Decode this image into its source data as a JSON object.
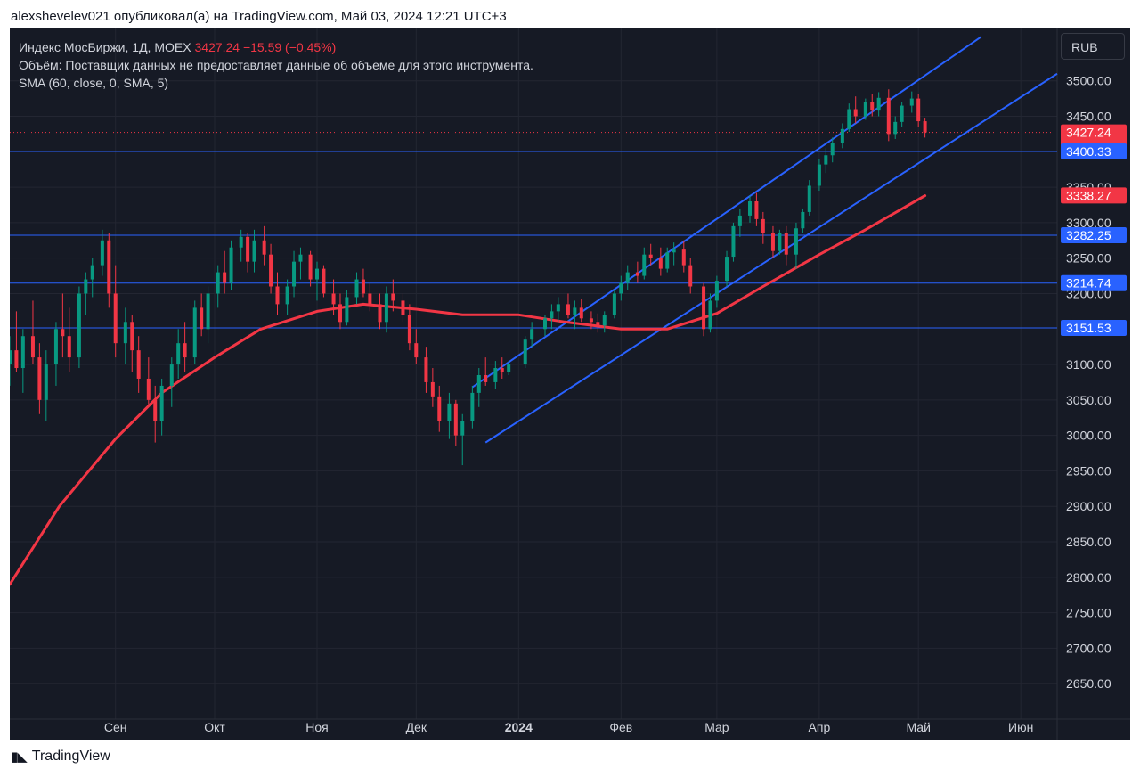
{
  "credit": "alexshevelev021 опубликовал(а) на TradingView.com, Май 03, 2024 12:21 UTC+3",
  "logo": {
    "text": "TradingView",
    "icon": "tradingview-logo-icon"
  },
  "legend": {
    "symbol": "Индекс МосБиржи, 1Д, MOEX",
    "price": "3427.24",
    "change": "−15.59 (−0.45%)",
    "volume_note": "Объём: Поставщик данных не предоставляет данные об объеме для этого инструмента.",
    "sma": "SMA (60, close, 0, SMA, 5)"
  },
  "currency_button": "RUB",
  "colors": {
    "bg": "#161a25",
    "up": "#089981",
    "down": "#f23645",
    "sma": "#f23645",
    "level": "#2962ff",
    "text": "#d1d4dc"
  },
  "chart_data": {
    "type": "candlestick",
    "ylim": [
      2600,
      3575
    ],
    "y_ticks": [
      "3500.00",
      "3450.00",
      "3350.00",
      "3300.00",
      "3250.00",
      "3200.00",
      "3100.00",
      "3050.00",
      "3000.00",
      "2950.00",
      "2900.00",
      "2850.00",
      "2800.00",
      "2750.00",
      "2700.00",
      "2650.00"
    ],
    "x_ticks": [
      "Сен",
      "Окт",
      "Ноя",
      "Дек",
      "2024",
      "Фев",
      "Мар",
      "Апр",
      "Май",
      "Июн"
    ],
    "x_tick_dates": [
      "2023-09-01",
      "2023-10-01",
      "2023-11-01",
      "2023-12-01",
      "2024-01-01",
      "2024-02-01",
      "2024-03-01",
      "2024-04-01",
      "2024-05-01",
      "2024-06-01"
    ],
    "xlim": [
      "2023-07-31",
      "2024-06-12"
    ],
    "grid": true,
    "price_labels": [
      {
        "value": 3427.24,
        "text": "3427.24",
        "sub": "06:38:29",
        "color": "#f23645"
      },
      {
        "value": 3400.33,
        "text": "3400.33",
        "color": "#2962ff"
      },
      {
        "value": 3338.27,
        "text": "3338.27",
        "color": "#f23645"
      },
      {
        "value": 3282.25,
        "text": "3282.25",
        "color": "#2962ff"
      },
      {
        "value": 3214.74,
        "text": "3214.74",
        "color": "#2962ff"
      },
      {
        "value": 3151.53,
        "text": "3151.53",
        "color": "#2962ff"
      }
    ],
    "horizontal_levels": [
      3400.33,
      3282.25,
      3214.74,
      3151.53
    ],
    "last_price": 3427.24,
    "channel_lines": [
      {
        "from": {
          "date": "2023-12-18",
          "y": 3068
        },
        "to": {
          "date": "2024-05-20",
          "y": 3562
        }
      },
      {
        "from": {
          "date": "2023-12-22",
          "y": 2990
        },
        "to": {
          "date": "2024-06-12",
          "y": 3510
        }
      }
    ],
    "sma_series": {
      "dates": [
        "2023-07-31",
        "2023-08-15",
        "2023-09-01",
        "2023-09-15",
        "2023-10-01",
        "2023-10-15",
        "2023-11-01",
        "2023-11-15",
        "2023-12-01",
        "2023-12-15",
        "2024-01-01",
        "2024-01-15",
        "2024-02-01",
        "2024-02-15",
        "2024-03-01",
        "2024-03-15",
        "2024-04-01",
        "2024-04-15",
        "2024-05-03"
      ],
      "values": [
        2790,
        2900,
        2995,
        3060,
        3110,
        3150,
        3175,
        3185,
        3178,
        3170,
        3170,
        3160,
        3150,
        3150,
        3172,
        3210,
        3255,
        3290,
        3338
      ]
    },
    "candles": [
      {
        "date": "2023-07-31",
        "o": 3100,
        "h": 3140,
        "l": 3070,
        "c": 3120
      },
      {
        "date": "2023-08-02",
        "o": 3120,
        "h": 3175,
        "l": 3090,
        "c": 3095
      },
      {
        "date": "2023-08-04",
        "o": 3095,
        "h": 3150,
        "l": 3060,
        "c": 3140
      },
      {
        "date": "2023-08-07",
        "o": 3140,
        "h": 3190,
        "l": 3100,
        "c": 3110
      },
      {
        "date": "2023-08-09",
        "o": 3110,
        "h": 3130,
        "l": 3030,
        "c": 3050
      },
      {
        "date": "2023-08-11",
        "o": 3050,
        "h": 3120,
        "l": 3020,
        "c": 3100
      },
      {
        "date": "2023-08-14",
        "o": 3100,
        "h": 3160,
        "l": 3070,
        "c": 3150
      },
      {
        "date": "2023-08-16",
        "o": 3150,
        "h": 3200,
        "l": 3110,
        "c": 3140
      },
      {
        "date": "2023-08-18",
        "o": 3140,
        "h": 3180,
        "l": 3090,
        "c": 3110
      },
      {
        "date": "2023-08-21",
        "o": 3110,
        "h": 3210,
        "l": 3095,
        "c": 3200
      },
      {
        "date": "2023-08-23",
        "o": 3200,
        "h": 3230,
        "l": 3170,
        "c": 3220
      },
      {
        "date": "2023-08-25",
        "o": 3220,
        "h": 3250,
        "l": 3195,
        "c": 3240
      },
      {
        "date": "2023-08-28",
        "o": 3240,
        "h": 3290,
        "l": 3225,
        "c": 3275
      },
      {
        "date": "2023-08-30",
        "o": 3275,
        "h": 3285,
        "l": 3180,
        "c": 3200
      },
      {
        "date": "2023-09-01",
        "o": 3200,
        "h": 3240,
        "l": 3110,
        "c": 3130
      },
      {
        "date": "2023-09-04",
        "o": 3130,
        "h": 3180,
        "l": 3100,
        "c": 3160
      },
      {
        "date": "2023-09-06",
        "o": 3160,
        "h": 3170,
        "l": 3090,
        "c": 3120
      },
      {
        "date": "2023-09-08",
        "o": 3120,
        "h": 3140,
        "l": 3060,
        "c": 3080
      },
      {
        "date": "2023-09-11",
        "o": 3080,
        "h": 3110,
        "l": 3040,
        "c": 3050
      },
      {
        "date": "2023-09-13",
        "o": 3050,
        "h": 3070,
        "l": 2990,
        "c": 3020
      },
      {
        "date": "2023-09-15",
        "o": 3020,
        "h": 3080,
        "l": 3000,
        "c": 3070
      },
      {
        "date": "2023-09-18",
        "o": 3070,
        "h": 3110,
        "l": 3040,
        "c": 3100
      },
      {
        "date": "2023-09-20",
        "o": 3100,
        "h": 3150,
        "l": 3080,
        "c": 3130
      },
      {
        "date": "2023-09-22",
        "o": 3130,
        "h": 3160,
        "l": 3090,
        "c": 3110
      },
      {
        "date": "2023-09-25",
        "o": 3110,
        "h": 3190,
        "l": 3100,
        "c": 3180
      },
      {
        "date": "2023-09-27",
        "o": 3180,
        "h": 3200,
        "l": 3140,
        "c": 3150
      },
      {
        "date": "2023-09-29",
        "o": 3150,
        "h": 3210,
        "l": 3130,
        "c": 3200
      },
      {
        "date": "2023-10-02",
        "o": 3200,
        "h": 3240,
        "l": 3180,
        "c": 3230
      },
      {
        "date": "2023-10-04",
        "o": 3230,
        "h": 3260,
        "l": 3200,
        "c": 3215
      },
      {
        "date": "2023-10-06",
        "o": 3215,
        "h": 3275,
        "l": 3205,
        "c": 3265
      },
      {
        "date": "2023-10-09",
        "o": 3265,
        "h": 3290,
        "l": 3245,
        "c": 3280
      },
      {
        "date": "2023-10-11",
        "o": 3280,
        "h": 3285,
        "l": 3230,
        "c": 3245
      },
      {
        "date": "2023-10-13",
        "o": 3245,
        "h": 3290,
        "l": 3230,
        "c": 3275
      },
      {
        "date": "2023-10-16",
        "o": 3275,
        "h": 3295,
        "l": 3240,
        "c": 3255
      },
      {
        "date": "2023-10-18",
        "o": 3255,
        "h": 3270,
        "l": 3200,
        "c": 3210
      },
      {
        "date": "2023-10-20",
        "o": 3210,
        "h": 3230,
        "l": 3170,
        "c": 3185
      },
      {
        "date": "2023-10-23",
        "o": 3185,
        "h": 3220,
        "l": 3170,
        "c": 3210
      },
      {
        "date": "2023-10-25",
        "o": 3210,
        "h": 3260,
        "l": 3195,
        "c": 3245
      },
      {
        "date": "2023-10-27",
        "o": 3245,
        "h": 3265,
        "l": 3220,
        "c": 3255
      },
      {
        "date": "2023-10-30",
        "o": 3255,
        "h": 3260,
        "l": 3210,
        "c": 3220
      },
      {
        "date": "2023-11-01",
        "o": 3220,
        "h": 3245,
        "l": 3190,
        "c": 3235
      },
      {
        "date": "2023-11-03",
        "o": 3235,
        "h": 3240,
        "l": 3195,
        "c": 3200
      },
      {
        "date": "2023-11-06",
        "o": 3200,
        "h": 3220,
        "l": 3170,
        "c": 3185
      },
      {
        "date": "2023-11-08",
        "o": 3185,
        "h": 3200,
        "l": 3150,
        "c": 3160
      },
      {
        "date": "2023-11-10",
        "o": 3160,
        "h": 3205,
        "l": 3155,
        "c": 3195
      },
      {
        "date": "2023-11-13",
        "o": 3195,
        "h": 3230,
        "l": 3185,
        "c": 3220
      },
      {
        "date": "2023-11-15",
        "o": 3220,
        "h": 3235,
        "l": 3195,
        "c": 3200
      },
      {
        "date": "2023-11-17",
        "o": 3200,
        "h": 3215,
        "l": 3175,
        "c": 3185
      },
      {
        "date": "2023-11-20",
        "o": 3185,
        "h": 3200,
        "l": 3150,
        "c": 3160
      },
      {
        "date": "2023-11-22",
        "o": 3160,
        "h": 3210,
        "l": 3145,
        "c": 3200
      },
      {
        "date": "2023-11-24",
        "o": 3200,
        "h": 3220,
        "l": 3175,
        "c": 3190
      },
      {
        "date": "2023-11-27",
        "o": 3190,
        "h": 3200,
        "l": 3160,
        "c": 3170
      },
      {
        "date": "2023-11-29",
        "o": 3170,
        "h": 3185,
        "l": 3120,
        "c": 3130
      },
      {
        "date": "2023-12-01",
        "o": 3130,
        "h": 3150,
        "l": 3100,
        "c": 3110
      },
      {
        "date": "2023-12-04",
        "o": 3110,
        "h": 3125,
        "l": 3060,
        "c": 3075
      },
      {
        "date": "2023-12-06",
        "o": 3075,
        "h": 3095,
        "l": 3040,
        "c": 3055
      },
      {
        "date": "2023-12-08",
        "o": 3055,
        "h": 3070,
        "l": 3005,
        "c": 3020
      },
      {
        "date": "2023-12-11",
        "o": 3020,
        "h": 3060,
        "l": 2995,
        "c": 3045
      },
      {
        "date": "2023-12-13",
        "o": 3045,
        "h": 3050,
        "l": 2985,
        "c": 3000
      },
      {
        "date": "2023-12-15",
        "o": 3000,
        "h": 3030,
        "l": 2958,
        "c": 3020
      },
      {
        "date": "2023-12-18",
        "o": 3020,
        "h": 3070,
        "l": 3010,
        "c": 3060
      },
      {
        "date": "2023-12-20",
        "o": 3060,
        "h": 3095,
        "l": 3040,
        "c": 3085
      },
      {
        "date": "2023-12-22",
        "o": 3085,
        "h": 3110,
        "l": 3070,
        "c": 3075
      },
      {
        "date": "2023-12-25",
        "o": 3075,
        "h": 3105,
        "l": 3065,
        "c": 3095
      },
      {
        "date": "2023-12-27",
        "o": 3095,
        "h": 3110,
        "l": 3080,
        "c": 3090
      },
      {
        "date": "2023-12-29",
        "o": 3090,
        "h": 3105,
        "l": 3085,
        "c": 3100
      },
      {
        "date": "2024-01-03",
        "o": 3100,
        "h": 3140,
        "l": 3095,
        "c": 3135
      },
      {
        "date": "2024-01-05",
        "o": 3135,
        "h": 3160,
        "l": 3125,
        "c": 3150
      },
      {
        "date": "2024-01-09",
        "o": 3150,
        "h": 3170,
        "l": 3140,
        "c": 3165
      },
      {
        "date": "2024-01-11",
        "o": 3165,
        "h": 3185,
        "l": 3150,
        "c": 3175
      },
      {
        "date": "2024-01-13",
        "o": 3175,
        "h": 3195,
        "l": 3160,
        "c": 3185
      },
      {
        "date": "2024-01-16",
        "o": 3185,
        "h": 3200,
        "l": 3165,
        "c": 3170
      },
      {
        "date": "2024-01-18",
        "o": 3170,
        "h": 3190,
        "l": 3150,
        "c": 3180
      },
      {
        "date": "2024-01-20",
        "o": 3180,
        "h": 3192,
        "l": 3160,
        "c": 3165
      },
      {
        "date": "2024-01-23",
        "o": 3165,
        "h": 3175,
        "l": 3150,
        "c": 3160
      },
      {
        "date": "2024-01-25",
        "o": 3160,
        "h": 3172,
        "l": 3145,
        "c": 3155
      },
      {
        "date": "2024-01-27",
        "o": 3155,
        "h": 3175,
        "l": 3145,
        "c": 3170
      },
      {
        "date": "2024-01-30",
        "o": 3170,
        "h": 3205,
        "l": 3165,
        "c": 3200
      },
      {
        "date": "2024-02-01",
        "o": 3200,
        "h": 3225,
        "l": 3190,
        "c": 3215
      },
      {
        "date": "2024-02-03",
        "o": 3215,
        "h": 3240,
        "l": 3205,
        "c": 3230
      },
      {
        "date": "2024-02-06",
        "o": 3230,
        "h": 3245,
        "l": 3215,
        "c": 3225
      },
      {
        "date": "2024-02-08",
        "o": 3225,
        "h": 3265,
        "l": 3220,
        "c": 3255
      },
      {
        "date": "2024-02-10",
        "o": 3255,
        "h": 3270,
        "l": 3240,
        "c": 3250
      },
      {
        "date": "2024-02-13",
        "o": 3250,
        "h": 3265,
        "l": 3225,
        "c": 3235
      },
      {
        "date": "2024-02-15",
        "o": 3235,
        "h": 3265,
        "l": 3230,
        "c": 3258
      },
      {
        "date": "2024-02-17",
        "o": 3258,
        "h": 3272,
        "l": 3240,
        "c": 3262
      },
      {
        "date": "2024-02-20",
        "o": 3262,
        "h": 3275,
        "l": 3230,
        "c": 3240
      },
      {
        "date": "2024-02-22",
        "o": 3240,
        "h": 3250,
        "l": 3200,
        "c": 3210
      },
      {
        "date": "2024-02-26",
        "o": 3210,
        "h": 3215,
        "l": 3140,
        "c": 3150
      },
      {
        "date": "2024-02-28",
        "o": 3150,
        "h": 3200,
        "l": 3145,
        "c": 3190
      },
      {
        "date": "2024-03-01",
        "o": 3190,
        "h": 3225,
        "l": 3180,
        "c": 3218
      },
      {
        "date": "2024-03-04",
        "o": 3218,
        "h": 3260,
        "l": 3210,
        "c": 3252
      },
      {
        "date": "2024-03-06",
        "o": 3252,
        "h": 3300,
        "l": 3245,
        "c": 3295
      },
      {
        "date": "2024-03-08",
        "o": 3295,
        "h": 3320,
        "l": 3280,
        "c": 3310
      },
      {
        "date": "2024-03-11",
        "o": 3310,
        "h": 3338,
        "l": 3300,
        "c": 3330
      },
      {
        "date": "2024-03-13",
        "o": 3330,
        "h": 3342,
        "l": 3295,
        "c": 3305
      },
      {
        "date": "2024-03-15",
        "o": 3305,
        "h": 3315,
        "l": 3270,
        "c": 3285
      },
      {
        "date": "2024-03-18",
        "o": 3285,
        "h": 3295,
        "l": 3250,
        "c": 3260
      },
      {
        "date": "2024-03-20",
        "o": 3260,
        "h": 3290,
        "l": 3255,
        "c": 3285
      },
      {
        "date": "2024-03-22",
        "o": 3285,
        "h": 3295,
        "l": 3240,
        "c": 3255
      },
      {
        "date": "2024-03-25",
        "o": 3255,
        "h": 3300,
        "l": 3235,
        "c": 3292
      },
      {
        "date": "2024-03-27",
        "o": 3292,
        "h": 3320,
        "l": 3285,
        "c": 3315
      },
      {
        "date": "2024-03-29",
        "o": 3315,
        "h": 3360,
        "l": 3310,
        "c": 3352
      },
      {
        "date": "2024-04-01",
        "o": 3352,
        "h": 3390,
        "l": 3345,
        "c": 3382
      },
      {
        "date": "2024-04-03",
        "o": 3382,
        "h": 3405,
        "l": 3370,
        "c": 3395
      },
      {
        "date": "2024-04-05",
        "o": 3395,
        "h": 3420,
        "l": 3385,
        "c": 3412
      },
      {
        "date": "2024-04-08",
        "o": 3412,
        "h": 3440,
        "l": 3405,
        "c": 3432
      },
      {
        "date": "2024-04-10",
        "o": 3432,
        "h": 3468,
        "l": 3428,
        "c": 3460
      },
      {
        "date": "2024-04-12",
        "o": 3460,
        "h": 3478,
        "l": 3440,
        "c": 3450
      },
      {
        "date": "2024-04-15",
        "o": 3450,
        "h": 3475,
        "l": 3445,
        "c": 3470
      },
      {
        "date": "2024-04-17",
        "o": 3470,
        "h": 3482,
        "l": 3450,
        "c": 3458
      },
      {
        "date": "2024-04-19",
        "o": 3458,
        "h": 3484,
        "l": 3450,
        "c": 3476
      },
      {
        "date": "2024-04-22",
        "o": 3476,
        "h": 3488,
        "l": 3415,
        "c": 3425
      },
      {
        "date": "2024-04-24",
        "o": 3425,
        "h": 3450,
        "l": 3418,
        "c": 3442
      },
      {
        "date": "2024-04-26",
        "o": 3442,
        "h": 3470,
        "l": 3435,
        "c": 3465
      },
      {
        "date": "2024-04-29",
        "o": 3465,
        "h": 3485,
        "l": 3455,
        "c": 3475
      },
      {
        "date": "2024-05-01",
        "o": 3475,
        "h": 3482,
        "l": 3435,
        "c": 3443
      },
      {
        "date": "2024-05-03",
        "o": 3443,
        "h": 3448,
        "l": 3420,
        "c": 3427.24
      }
    ]
  }
}
